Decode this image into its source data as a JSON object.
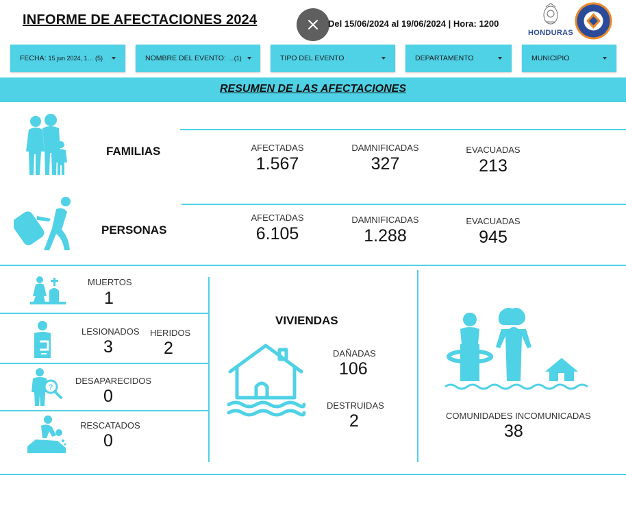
{
  "header": {
    "title": "INFORME DE AFECTACIONES 2024 ",
    "period": "Del 15/06/2024 al 19/06/2024 | Hora: 1200",
    "logo_honduras": "HONDURAS",
    "logo_copeco": "COPECO HONDURAS"
  },
  "filters": [
    {
      "label": "FECHA:",
      "value": "15 jun 2024, 1…  (5)"
    },
    {
      "label": "NOMBRE DEL EVENTO:",
      "value": "…(1)"
    },
    {
      "label": "TIPO DEL EVENTO",
      "value": ""
    },
    {
      "label": "DEPARTAMENTO",
      "value": ""
    },
    {
      "label": "MUNICIPIO",
      "value": ""
    }
  ],
  "summary_title": "RESUMEN DE LAS AFECTACIONES",
  "familias": {
    "label": "FAMILIAS",
    "afectadas_label": "AFECTADAS",
    "afectadas": "1.567",
    "damnificadas_label": "DAMNIFICADAS",
    "damnificadas": "327",
    "evacuadas_label": "EVACUADAS",
    "evacuadas": "213"
  },
  "personas": {
    "label": "PERSONAS",
    "afectadas_label": "AFECTADAS",
    "afectadas": "6.105",
    "damnificadas_label": "DAMNIFICADAS",
    "damnificadas": "1.288",
    "evacuadas_label": "EVACUADAS",
    "evacuadas": "945"
  },
  "muertos": {
    "label": "MUERTOS",
    "value": "1"
  },
  "lesionados": {
    "label": "LESIONADOS",
    "value": "3"
  },
  "heridos": {
    "label": "HERIDOS",
    "value": "2"
  },
  "desaparecidos": {
    "label": "DESAPARECIDOS",
    "value": "0"
  },
  "rescatados": {
    "label": "RESCATADOS",
    "value": "0"
  },
  "viviendas": {
    "label": "VIVIENDAS",
    "danadas_label": "DAÑADAS",
    "danadas": "106",
    "destruidas_label": "DESTRUIDAS",
    "destruidas": "2"
  },
  "comunidades": {
    "label": "COMUNIDADES INCOMUNICADAS",
    "value": "38"
  },
  "colors": {
    "accent": "#4fd1e6",
    "close_button": "#5f5f5f",
    "copeco_orange": "#e8892b",
    "copeco_blue": "#2b4a9a"
  },
  "icons": [
    "close-icon",
    "family-icon",
    "traveler-icon",
    "grave-icon",
    "injured-icon",
    "missing-person-icon",
    "rescue-icon",
    "flooded-house-icon",
    "isolated-community-icon"
  ]
}
